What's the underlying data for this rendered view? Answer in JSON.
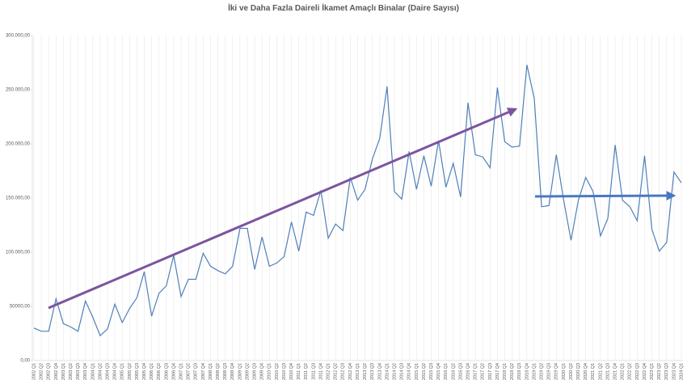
{
  "chart_data": {
    "type": "line",
    "title": "İki ve Daha Fazla Daireli İkamet Amaçlı Binalar (Daire Sayısı)",
    "categories": [
      "2002 Q1",
      "2002 Q2",
      "2002 Q3",
      "2002 Q4",
      "2003 Q1",
      "2003 Q2",
      "2003 Q3",
      "2003 Q4",
      "2004 Q1",
      "2004 Q2",
      "2004 Q3",
      "2004 Q4",
      "2005 Q1",
      "2005 Q2",
      "2005 Q3",
      "2005 Q4",
      "2006 Q1",
      "2006 Q2",
      "2006 Q3",
      "2006 Q4",
      "2007 Q1",
      "2007 Q2",
      "2007 Q3",
      "2007 Q4",
      "2008 Q1",
      "2008 Q2",
      "2008 Q3",
      "2008 Q4",
      "2009 Q1",
      "2009 Q2",
      "2009 Q3",
      "2009 Q4",
      "2010 Q1",
      "2010 Q2",
      "2010 Q3",
      "2010 Q4",
      "2011 Q1",
      "2011 Q2",
      "2011 Q3",
      "2011 Q4",
      "2012 Q1",
      "2012 Q2",
      "2012 Q3",
      "2012 Q4",
      "2013 Q1",
      "2013 Q2",
      "2013 Q3",
      "2013 Q4",
      "2014 Q1",
      "2014 Q2",
      "2014 Q3",
      "2014 Q4",
      "2015 Q1",
      "2015 Q2",
      "2015 Q3",
      "2015 Q4",
      "2016 Q1",
      "2016 Q2",
      "2016 Q3",
      "2016 Q4",
      "2017 Q1",
      "2017 Q2",
      "2017 Q3",
      "2017 Q4",
      "2018 Q1",
      "2018 Q2",
      "2018 Q3",
      "2018 Q4",
      "2019 Q1",
      "2019 Q2",
      "2019 Q3",
      "2019 Q4",
      "2020 Q1",
      "2020 Q2",
      "2020 Q3",
      "2020 Q4",
      "2021 Q1",
      "2021 Q2",
      "2021 Q3",
      "2021 Q4",
      "2022 Q1",
      "2022 Q2",
      "2022 Q3",
      "2022 Q4",
      "2023 Q1",
      "2023 Q2",
      "2023 Q3",
      "2023 Q4",
      "2024 Q1"
    ],
    "series": [
      {
        "name": "Daire Sayısı",
        "color": "#4f7fb8",
        "values": [
          30000,
          27000,
          27000,
          57000,
          34000,
          31000,
          27000,
          55000,
          40000,
          23000,
          29000,
          52000,
          35000,
          48000,
          58000,
          82000,
          41000,
          62000,
          69000,
          97000,
          59000,
          75000,
          75000,
          99000,
          87000,
          83000,
          80000,
          87000,
          122000,
          122000,
          84000,
          114000,
          87000,
          90000,
          96000,
          128000,
          101000,
          137000,
          134000,
          157000,
          113000,
          126000,
          120000,
          169000,
          148000,
          158000,
          186000,
          205000,
          253000,
          156000,
          149000,
          193000,
          158000,
          189000,
          161000,
          203000,
          160000,
          182000,
          151000,
          238000,
          190000,
          188000,
          178000,
          252000,
          202000,
          197000,
          198000,
          273000,
          242000,
          142000,
          143000,
          190000,
          148000,
          111000,
          148000,
          169000,
          156000,
          115000,
          131000,
          199000,
          148000,
          142000,
          129000,
          189000,
          121000,
          101000,
          109000,
          174000,
          164000
        ]
      }
    ],
    "ylim": [
      0,
      300000
    ],
    "yticks": [
      {
        "value": 0,
        "label": "0,00"
      },
      {
        "value": 50000,
        "label": "50000,00"
      },
      {
        "value": 100000,
        "label": "100.000,00"
      },
      {
        "value": 150000,
        "label": "150.000,00"
      },
      {
        "value": 200000,
        "label": "200.000,00"
      },
      {
        "value": 250000,
        "label": "250.000,00"
      },
      {
        "value": 300000,
        "label": "300.000,00"
      }
    ],
    "grid": true
  }
}
